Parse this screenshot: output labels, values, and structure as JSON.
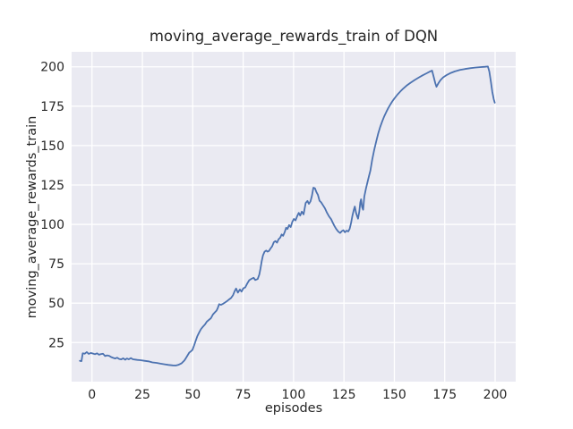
{
  "chart_data": {
    "type": "line",
    "title": "moving_average_rewards_train of DQN",
    "xlabel": "episodes",
    "ylabel": "moving_average_rewards_train",
    "x_ticks": [
      0,
      25,
      50,
      75,
      100,
      125,
      150,
      175,
      200
    ],
    "y_ticks": [
      25,
      50,
      75,
      100,
      125,
      150,
      175,
      200
    ],
    "xlim": [
      -10.1,
      210.2
    ],
    "ylim": [
      0.2,
      209.5
    ],
    "grid": true,
    "legend": "none",
    "colors": {
      "line": "#4C72B0",
      "plot_bg": "#EAEAF2",
      "grid": "#FFFFFF",
      "text": "#262626",
      "figure_bg": "#FFFFFF"
    },
    "series": [
      {
        "name": "moving_average_rewards_train",
        "points": [
          [
            -6.0,
            13.4
          ],
          [
            -5.2,
            13.2
          ],
          [
            -4.6,
            18.2
          ],
          [
            -3.6,
            17.9
          ],
          [
            -2.6,
            19.0
          ],
          [
            -1.6,
            17.8
          ],
          [
            -0.6,
            18.4
          ],
          [
            0.5,
            18.0
          ],
          [
            1.5,
            17.6
          ],
          [
            2.5,
            18.2
          ],
          [
            3.5,
            17.3
          ],
          [
            4.5,
            17.7
          ],
          [
            5.5,
            17.9
          ],
          [
            6.5,
            16.4
          ],
          [
            7.5,
            16.9
          ],
          [
            8.5,
            16.6
          ],
          [
            9.5,
            15.8
          ],
          [
            10.5,
            15.3
          ],
          [
            11.5,
            14.9
          ],
          [
            12.5,
            15.4
          ],
          [
            13.5,
            14.6
          ],
          [
            14.5,
            14.3
          ],
          [
            15.5,
            15.0
          ],
          [
            16.5,
            14.1
          ],
          [
            17.3,
            14.9
          ],
          [
            18.3,
            14.4
          ],
          [
            19.3,
            15.2
          ],
          [
            20.3,
            14.4
          ],
          [
            21.3,
            14.2
          ],
          [
            22.5,
            14.0
          ],
          [
            24.0,
            13.8
          ],
          [
            26.0,
            13.4
          ],
          [
            28.0,
            13.1
          ],
          [
            30.0,
            12.4
          ],
          [
            32.0,
            12.1
          ],
          [
            34.0,
            11.6
          ],
          [
            36.0,
            11.2
          ],
          [
            38.0,
            10.8
          ],
          [
            40.0,
            10.5
          ],
          [
            41.5,
            10.4
          ],
          [
            43.0,
            10.9
          ],
          [
            44.5,
            11.9
          ],
          [
            45.8,
            13.6
          ],
          [
            46.6,
            15.2
          ],
          [
            47.4,
            16.9
          ],
          [
            48.2,
            18.6
          ],
          [
            49.0,
            19.4
          ],
          [
            49.8,
            20.3
          ],
          [
            50.6,
            23.0
          ],
          [
            51.4,
            26.0
          ],
          [
            52.2,
            28.9
          ],
          [
            53.0,
            31.0
          ],
          [
            54.0,
            33.4
          ],
          [
            55.0,
            35.0
          ],
          [
            56.0,
            36.4
          ],
          [
            57.0,
            38.3
          ],
          [
            58.0,
            39.4
          ],
          [
            59.0,
            40.5
          ],
          [
            60.0,
            42.8
          ],
          [
            61.0,
            44.2
          ],
          [
            61.8,
            45.3
          ],
          [
            62.4,
            46.9
          ],
          [
            63.1,
            49.4
          ],
          [
            64.0,
            48.9
          ],
          [
            65.0,
            49.6
          ],
          [
            66.0,
            50.4
          ],
          [
            67.0,
            51.3
          ],
          [
            68.0,
            52.3
          ],
          [
            69.0,
            53.3
          ],
          [
            70.0,
            55.1
          ],
          [
            70.8,
            57.6
          ],
          [
            71.5,
            59.3
          ],
          [
            72.4,
            56.7
          ],
          [
            73.4,
            58.7
          ],
          [
            74.2,
            57.3
          ],
          [
            75.1,
            59.4
          ],
          [
            76.0,
            60.0
          ],
          [
            77.0,
            62.4
          ],
          [
            78.0,
            64.6
          ],
          [
            79.0,
            65.4
          ],
          [
            80.2,
            66.1
          ],
          [
            81.0,
            64.7
          ],
          [
            82.2,
            65.3
          ],
          [
            83.0,
            68.1
          ],
          [
            83.6,
            72.1
          ],
          [
            84.2,
            76.6
          ],
          [
            84.8,
            80.3
          ],
          [
            85.6,
            82.7
          ],
          [
            86.4,
            83.4
          ],
          [
            87.1,
            82.7
          ],
          [
            87.8,
            83.1
          ],
          [
            88.6,
            84.7
          ],
          [
            89.4,
            86.1
          ],
          [
            90.2,
            88.6
          ],
          [
            91.0,
            89.4
          ],
          [
            91.8,
            88.4
          ],
          [
            92.6,
            90.6
          ],
          [
            93.4,
            91.6
          ],
          [
            94.1,
            93.6
          ],
          [
            94.8,
            92.7
          ],
          [
            95.6,
            95.1
          ],
          [
            96.3,
            97.9
          ],
          [
            97.0,
            97.1
          ],
          [
            97.8,
            99.6
          ],
          [
            98.6,
            98.3
          ],
          [
            99.4,
            101.6
          ],
          [
            100.2,
            103.5
          ],
          [
            101.0,
            102.5
          ],
          [
            101.9,
            105.6
          ],
          [
            102.6,
            107.3
          ],
          [
            103.3,
            105.6
          ],
          [
            104.1,
            108.1
          ],
          [
            105.0,
            106.3
          ],
          [
            106.0,
            113.6
          ],
          [
            106.9,
            114.9
          ],
          [
            107.6,
            113.0
          ],
          [
            108.4,
            114.6
          ],
          [
            109.1,
            118.1
          ],
          [
            109.8,
            123.3
          ],
          [
            110.6,
            122.9
          ],
          [
            111.3,
            120.6
          ],
          [
            112.1,
            118.7
          ],
          [
            112.9,
            115.0
          ],
          [
            113.7,
            114.0
          ],
          [
            114.6,
            112.1
          ],
          [
            115.6,
            110.1
          ],
          [
            116.6,
            107.3
          ],
          [
            117.6,
            105.1
          ],
          [
            118.6,
            103.3
          ],
          [
            119.6,
            100.7
          ],
          [
            120.4,
            98.7
          ],
          [
            121.2,
            97.0
          ],
          [
            122.2,
            95.4
          ],
          [
            123.1,
            94.5
          ],
          [
            124.0,
            95.8
          ],
          [
            124.7,
            96.3
          ],
          [
            125.5,
            95.0
          ],
          [
            126.3,
            96.0
          ],
          [
            127.1,
            95.5
          ],
          [
            127.8,
            97.1
          ],
          [
            128.5,
            100.8
          ],
          [
            129.2,
            105.4
          ],
          [
            129.9,
            109.3
          ],
          [
            130.4,
            111.3
          ],
          [
            131.0,
            107.3
          ],
          [
            131.5,
            105.3
          ],
          [
            132.0,
            103.6
          ],
          [
            132.6,
            108.1
          ],
          [
            133.1,
            113.9
          ],
          [
            133.5,
            115.9
          ],
          [
            134.0,
            111.1
          ],
          [
            134.5,
            109.3
          ],
          [
            135.1,
            117.6
          ],
          [
            135.9,
            122.6
          ],
          [
            136.6,
            126.4
          ],
          [
            137.4,
            130.6
          ],
          [
            138.1,
            134.1
          ],
          [
            139.0,
            141.0
          ],
          [
            140.0,
            147.1
          ],
          [
            141.0,
            152.6
          ],
          [
            142.0,
            157.6
          ],
          [
            143.0,
            161.9
          ],
          [
            144.0,
            165.5
          ],
          [
            145.0,
            168.6
          ],
          [
            146.0,
            171.4
          ],
          [
            147.0,
            173.9
          ],
          [
            148.0,
            176.1
          ],
          [
            149.0,
            178.1
          ],
          [
            150.0,
            179.9
          ],
          [
            151.5,
            182.3
          ],
          [
            153.0,
            184.4
          ],
          [
            154.5,
            186.3
          ],
          [
            156.0,
            188.0
          ],
          [
            158.0,
            189.9
          ],
          [
            160.0,
            191.6
          ],
          [
            162.0,
            193.1
          ],
          [
            164.0,
            194.6
          ],
          [
            166.0,
            195.9
          ],
          [
            167.5,
            196.9
          ],
          [
            168.7,
            197.6
          ],
          [
            169.5,
            193.6
          ],
          [
            170.3,
            189.6
          ],
          [
            170.9,
            187.3
          ],
          [
            171.8,
            189.4
          ],
          [
            172.9,
            191.6
          ],
          [
            174.2,
            193.3
          ],
          [
            176.0,
            194.8
          ],
          [
            178.0,
            196.1
          ],
          [
            180.0,
            197.1
          ],
          [
            182.5,
            198.0
          ],
          [
            185.0,
            198.6
          ],
          [
            187.5,
            199.1
          ],
          [
            190.0,
            199.5
          ],
          [
            192.5,
            199.8
          ],
          [
            195.0,
            200.0
          ],
          [
            196.4,
            200.2
          ],
          [
            197.1,
            197.1
          ],
          [
            197.9,
            190.5
          ],
          [
            198.6,
            184.0
          ],
          [
            199.3,
            179.4
          ],
          [
            199.8,
            177.2
          ]
        ]
      }
    ]
  }
}
